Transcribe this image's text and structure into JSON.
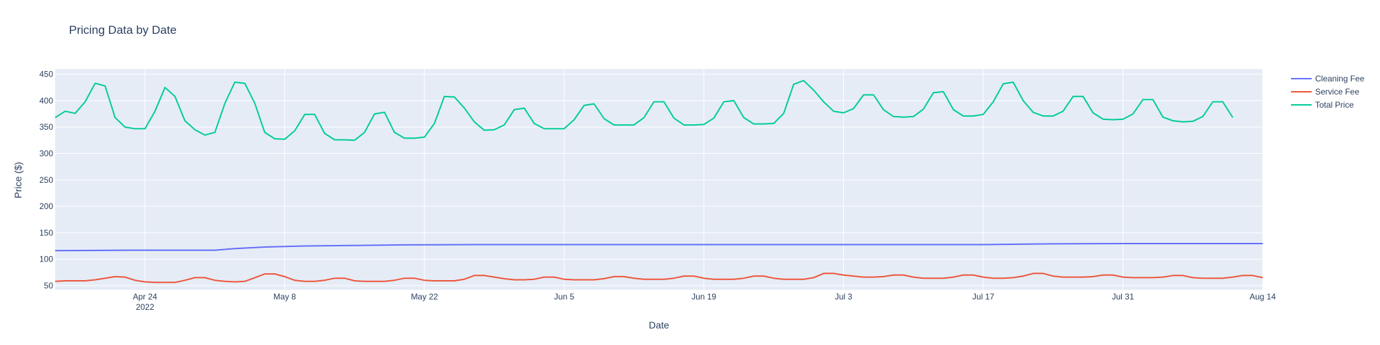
{
  "chart_data": {
    "type": "line",
    "title": "Pricing Data by Date",
    "xlabel": "Date",
    "ylabel": "Price ($)",
    "xlim": [
      "2022-04-15",
      "2022-08-14"
    ],
    "ylim": [
      42,
      460
    ],
    "grid": true,
    "legend_position": "top-right, outside plot",
    "y_ticks": [
      50,
      100,
      150,
      200,
      250,
      300,
      350,
      400,
      450
    ],
    "x_ticks": [
      {
        "date": "2022-04-24",
        "label": "Apr 24",
        "sublabel": "2022"
      },
      {
        "date": "2022-05-08",
        "label": "May 8"
      },
      {
        "date": "2022-05-22",
        "label": "May 22"
      },
      {
        "date": "2022-06-05",
        "label": "Jun 5"
      },
      {
        "date": "2022-06-19",
        "label": "Jun 19"
      },
      {
        "date": "2022-07-03",
        "label": "Jul 3"
      },
      {
        "date": "2022-07-17",
        "label": "Jul 17"
      },
      {
        "date": "2022-07-31",
        "label": "Jul 31"
      },
      {
        "date": "2022-08-14",
        "label": "Aug 14"
      }
    ],
    "series": [
      {
        "name": "Cleaning Fee",
        "color": "#636efa",
        "points": [
          [
            "2022-04-15",
            116
          ],
          [
            "2022-04-22",
            117
          ],
          [
            "2022-04-26",
            117
          ],
          [
            "2022-05-01",
            117
          ],
          [
            "2022-05-03",
            120
          ],
          [
            "2022-05-06",
            123
          ],
          [
            "2022-05-10",
            125
          ],
          [
            "2022-05-15",
            126
          ],
          [
            "2022-05-20",
            127
          ],
          [
            "2022-05-27",
            127.5
          ],
          [
            "2022-06-05",
            127.5
          ],
          [
            "2022-06-19",
            127.5
          ],
          [
            "2022-07-03",
            127.5
          ],
          [
            "2022-07-17",
            127.5
          ],
          [
            "2022-07-24",
            129
          ],
          [
            "2022-07-31",
            129.5
          ],
          [
            "2022-08-07",
            129.5
          ],
          [
            "2022-08-14",
            129.5
          ]
        ]
      },
      {
        "name": "Service Fee",
        "color": "#ef553b",
        "points": [
          [
            "2022-04-15",
            58
          ],
          [
            "2022-04-16",
            59
          ],
          [
            "2022-04-17",
            59
          ],
          [
            "2022-04-18",
            59
          ],
          [
            "2022-04-19",
            61
          ],
          [
            "2022-04-20",
            64
          ],
          [
            "2022-04-21",
            67
          ],
          [
            "2022-04-22",
            66
          ],
          [
            "2022-04-23",
            60
          ],
          [
            "2022-04-24",
            57
          ],
          [
            "2022-04-25",
            56
          ],
          [
            "2022-04-26",
            56
          ],
          [
            "2022-04-27",
            56
          ],
          [
            "2022-04-28",
            60
          ],
          [
            "2022-04-29",
            65
          ],
          [
            "2022-04-30",
            65
          ],
          [
            "2022-05-01",
            60
          ],
          [
            "2022-05-02",
            58
          ],
          [
            "2022-05-03",
            57
          ],
          [
            "2022-05-04",
            58
          ],
          [
            "2022-05-05",
            65
          ],
          [
            "2022-05-06",
            72
          ],
          [
            "2022-05-07",
            72
          ],
          [
            "2022-05-08",
            67
          ],
          [
            "2022-05-09",
            60
          ],
          [
            "2022-05-10",
            58
          ],
          [
            "2022-05-11",
            58
          ],
          [
            "2022-05-12",
            60
          ],
          [
            "2022-05-13",
            64
          ],
          [
            "2022-05-14",
            64
          ],
          [
            "2022-05-15",
            59
          ],
          [
            "2022-05-16",
            58
          ],
          [
            "2022-05-17",
            58
          ],
          [
            "2022-05-18",
            58
          ],
          [
            "2022-05-19",
            60
          ],
          [
            "2022-05-20",
            64
          ],
          [
            "2022-05-21",
            64
          ],
          [
            "2022-05-22",
            60
          ],
          [
            "2022-05-23",
            59
          ],
          [
            "2022-05-24",
            59
          ],
          [
            "2022-05-25",
            59
          ],
          [
            "2022-05-26",
            62
          ],
          [
            "2022-05-27",
            69
          ],
          [
            "2022-05-28",
            69
          ],
          [
            "2022-05-29",
            66
          ],
          [
            "2022-05-30",
            63
          ],
          [
            "2022-05-31",
            61
          ],
          [
            "2022-06-01",
            61
          ],
          [
            "2022-06-02",
            62
          ],
          [
            "2022-06-03",
            66
          ],
          [
            "2022-06-04",
            66
          ],
          [
            "2022-06-05",
            62
          ],
          [
            "2022-06-06",
            61
          ],
          [
            "2022-06-07",
            61
          ],
          [
            "2022-06-08",
            61
          ],
          [
            "2022-06-09",
            63
          ],
          [
            "2022-06-10",
            67
          ],
          [
            "2022-06-11",
            67
          ],
          [
            "2022-06-12",
            64
          ],
          [
            "2022-06-13",
            62
          ],
          [
            "2022-06-14",
            62
          ],
          [
            "2022-06-15",
            62
          ],
          [
            "2022-06-16",
            64
          ],
          [
            "2022-06-17",
            68
          ],
          [
            "2022-06-18",
            68
          ],
          [
            "2022-06-19",
            64
          ],
          [
            "2022-06-20",
            62
          ],
          [
            "2022-06-21",
            62
          ],
          [
            "2022-06-22",
            62
          ],
          [
            "2022-06-23",
            64
          ],
          [
            "2022-06-24",
            68
          ],
          [
            "2022-06-25",
            68
          ],
          [
            "2022-06-26",
            64
          ],
          [
            "2022-06-27",
            62
          ],
          [
            "2022-06-28",
            62
          ],
          [
            "2022-06-29",
            62
          ],
          [
            "2022-06-30",
            65
          ],
          [
            "2022-07-01",
            73
          ],
          [
            "2022-07-02",
            73
          ],
          [
            "2022-07-03",
            70
          ],
          [
            "2022-07-04",
            68
          ],
          [
            "2022-07-05",
            66
          ],
          [
            "2022-07-06",
            66
          ],
          [
            "2022-07-07",
            67
          ],
          [
            "2022-07-08",
            70
          ],
          [
            "2022-07-09",
            70
          ],
          [
            "2022-07-10",
            66
          ],
          [
            "2022-07-11",
            64
          ],
          [
            "2022-07-12",
            64
          ],
          [
            "2022-07-13",
            64
          ],
          [
            "2022-07-14",
            66
          ],
          [
            "2022-07-15",
            70
          ],
          [
            "2022-07-16",
            70
          ],
          [
            "2022-07-17",
            66
          ],
          [
            "2022-07-18",
            64
          ],
          [
            "2022-07-19",
            64
          ],
          [
            "2022-07-20",
            65
          ],
          [
            "2022-07-21",
            68
          ],
          [
            "2022-07-22",
            73
          ],
          [
            "2022-07-23",
            73
          ],
          [
            "2022-07-24",
            68
          ],
          [
            "2022-07-25",
            66
          ],
          [
            "2022-07-26",
            66
          ],
          [
            "2022-07-27",
            66
          ],
          [
            "2022-07-28",
            67
          ],
          [
            "2022-07-29",
            70
          ],
          [
            "2022-07-30",
            70
          ],
          [
            "2022-07-31",
            66
          ],
          [
            "2022-08-01",
            65
          ],
          [
            "2022-08-02",
            65
          ],
          [
            "2022-08-03",
            65
          ],
          [
            "2022-08-04",
            66
          ],
          [
            "2022-08-05",
            69
          ],
          [
            "2022-08-06",
            69
          ],
          [
            "2022-08-07",
            65
          ],
          [
            "2022-08-08",
            64
          ],
          [
            "2022-08-09",
            64
          ],
          [
            "2022-08-10",
            64
          ],
          [
            "2022-08-11",
            66
          ],
          [
            "2022-08-12",
            69
          ],
          [
            "2022-08-13",
            69
          ],
          [
            "2022-08-14",
            65
          ]
        ]
      },
      {
        "name": "Total Price",
        "color": "#00cc96",
        "points": [
          [
            "2022-04-15",
            368
          ],
          [
            "2022-04-16",
            380
          ],
          [
            "2022-04-17",
            376
          ],
          [
            "2022-04-18",
            398
          ],
          [
            "2022-04-19",
            433
          ],
          [
            "2022-04-20",
            428
          ],
          [
            "2022-04-21",
            368
          ],
          [
            "2022-04-22",
            350
          ],
          [
            "2022-04-23",
            347
          ],
          [
            "2022-04-24",
            347
          ],
          [
            "2022-04-25",
            380
          ],
          [
            "2022-04-26",
            425
          ],
          [
            "2022-04-27",
            408
          ],
          [
            "2022-04-28",
            362
          ],
          [
            "2022-04-29",
            345
          ],
          [
            "2022-04-30",
            335
          ],
          [
            "2022-05-01",
            340
          ],
          [
            "2022-05-02",
            395
          ],
          [
            "2022-05-03",
            435
          ],
          [
            "2022-05-04",
            433
          ],
          [
            "2022-05-05",
            395
          ],
          [
            "2022-05-06",
            340
          ],
          [
            "2022-05-07",
            328
          ],
          [
            "2022-05-08",
            327
          ],
          [
            "2022-05-09",
            343
          ],
          [
            "2022-05-10",
            374
          ],
          [
            "2022-05-11",
            374
          ],
          [
            "2022-05-12",
            338
          ],
          [
            "2022-05-13",
            326
          ],
          [
            "2022-05-14",
            326
          ],
          [
            "2022-05-15",
            325
          ],
          [
            "2022-05-16",
            340
          ],
          [
            "2022-05-17",
            375
          ],
          [
            "2022-05-18",
            378
          ],
          [
            "2022-05-19",
            340
          ],
          [
            "2022-05-20",
            329
          ],
          [
            "2022-05-21",
            329
          ],
          [
            "2022-05-22",
            331
          ],
          [
            "2022-05-23",
            357
          ],
          [
            "2022-05-24",
            408
          ],
          [
            "2022-05-25",
            407
          ],
          [
            "2022-05-26",
            386
          ],
          [
            "2022-05-27",
            360
          ],
          [
            "2022-05-28",
            344
          ],
          [
            "2022-05-29",
            345
          ],
          [
            "2022-05-30",
            354
          ],
          [
            "2022-05-31",
            383
          ],
          [
            "2022-06-01",
            386
          ],
          [
            "2022-06-02",
            357
          ],
          [
            "2022-06-03",
            347
          ],
          [
            "2022-06-04",
            347
          ],
          [
            "2022-06-05",
            347
          ],
          [
            "2022-06-06",
            364
          ],
          [
            "2022-06-07",
            391
          ],
          [
            "2022-06-08",
            394
          ],
          [
            "2022-06-09",
            366
          ],
          [
            "2022-06-10",
            354
          ],
          [
            "2022-06-11",
            354
          ],
          [
            "2022-06-12",
            354
          ],
          [
            "2022-06-13",
            368
          ],
          [
            "2022-06-14",
            398
          ],
          [
            "2022-06-15",
            398
          ],
          [
            "2022-06-16",
            367
          ],
          [
            "2022-06-17",
            354
          ],
          [
            "2022-06-18",
            354
          ],
          [
            "2022-06-19",
            355
          ],
          [
            "2022-06-20",
            367
          ],
          [
            "2022-06-21",
            398
          ],
          [
            "2022-06-22",
            400
          ],
          [
            "2022-06-23",
            368
          ],
          [
            "2022-06-24",
            356
          ],
          [
            "2022-06-25",
            356
          ],
          [
            "2022-06-26",
            357
          ],
          [
            "2022-06-27",
            376
          ],
          [
            "2022-06-28",
            431
          ],
          [
            "2022-06-29",
            438
          ],
          [
            "2022-06-30",
            420
          ],
          [
            "2022-07-01",
            398
          ],
          [
            "2022-07-02",
            380
          ],
          [
            "2022-07-03",
            377
          ],
          [
            "2022-07-04",
            385
          ],
          [
            "2022-07-05",
            411
          ],
          [
            "2022-07-06",
            411
          ],
          [
            "2022-07-07",
            383
          ],
          [
            "2022-07-08",
            370
          ],
          [
            "2022-07-09",
            369
          ],
          [
            "2022-07-10",
            370
          ],
          [
            "2022-07-11",
            384
          ],
          [
            "2022-07-12",
            415
          ],
          [
            "2022-07-13",
            417
          ],
          [
            "2022-07-14",
            383
          ],
          [
            "2022-07-15",
            371
          ],
          [
            "2022-07-16",
            371
          ],
          [
            "2022-07-17",
            374
          ],
          [
            "2022-07-18",
            398
          ],
          [
            "2022-07-19",
            432
          ],
          [
            "2022-07-20",
            435
          ],
          [
            "2022-07-21",
            400
          ],
          [
            "2022-07-22",
            378
          ],
          [
            "2022-07-23",
            371
          ],
          [
            "2022-07-24",
            371
          ],
          [
            "2022-07-25",
            380
          ],
          [
            "2022-07-26",
            408
          ],
          [
            "2022-07-27",
            408
          ],
          [
            "2022-07-28",
            377
          ],
          [
            "2022-07-29",
            365
          ],
          [
            "2022-07-30",
            364
          ],
          [
            "2022-07-31",
            365
          ],
          [
            "2022-08-01",
            375
          ],
          [
            "2022-08-02",
            402
          ],
          [
            "2022-08-03",
            402
          ],
          [
            "2022-08-04",
            369
          ],
          [
            "2022-08-05",
            362
          ],
          [
            "2022-08-06",
            360
          ],
          [
            "2022-08-07",
            361
          ],
          [
            "2022-08-08",
            370
          ],
          [
            "2022-08-09",
            398
          ],
          [
            "2022-08-10",
            398
          ],
          [
            "2022-08-11",
            368
          ]
        ]
      }
    ]
  }
}
